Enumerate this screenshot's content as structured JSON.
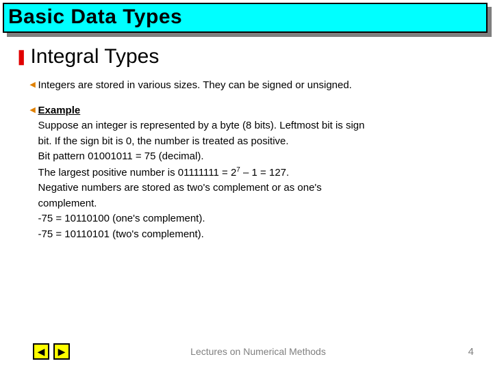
{
  "title": "Basic Data Types",
  "section": {
    "bullet_color": "#e00000",
    "title": "Integral Types"
  },
  "sub1": {
    "bullet_color": "#e08000",
    "text": "Integers are stored in various sizes. They can be signed or unsigned."
  },
  "sub2": {
    "bullet_color": "#e08000",
    "label": "Example",
    "line1": "Suppose an integer is represented by a byte (8 bits). Leftmost bit is sign",
    "line2": "bit.  If the sign bit is 0, the number is treated as positive.",
    "line3": "Bit pattern 01001011 = 75 (decimal).",
    "line4a": "The largest positive number is 01111111 = 2",
    "line4sup": "7",
    "line4b": " – 1 = 127.",
    "line5": "Negative numbers are stored as two's complement or as one's",
    "line6": "complement.",
    "line7": "-75 = 10110100 (one's complement).",
    "line8": "-75 = 10110101 (two's complement)."
  },
  "footer": {
    "text": "Lectures on Numerical Methods",
    "page": "4"
  },
  "nav": {
    "prev_glyph": "◀",
    "next_glyph": "▶"
  }
}
